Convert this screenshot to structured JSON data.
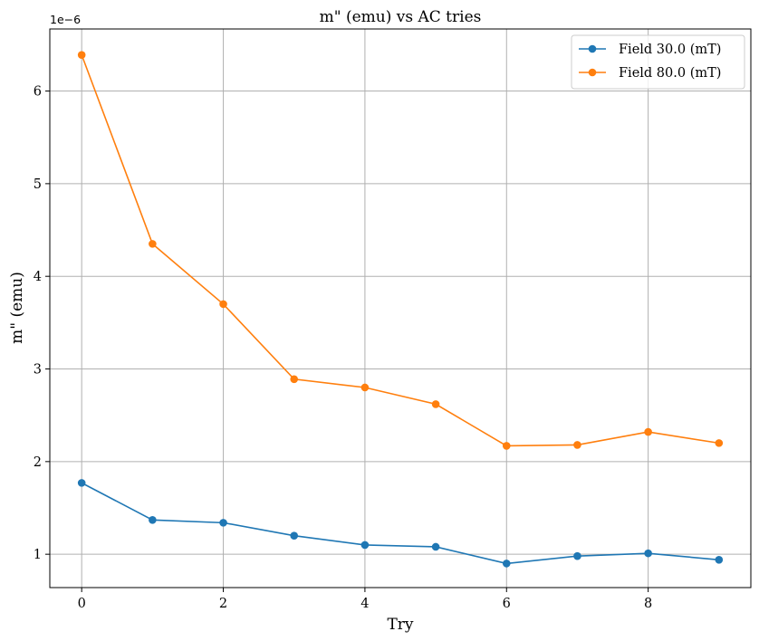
{
  "chart_data": {
    "type": "line",
    "title": "m\" (emu) vs  AC tries",
    "xlabel": "Try",
    "ylabel": "m\" (emu)",
    "y_offset_text": "1e−6",
    "x": [
      0,
      1,
      2,
      3,
      4,
      5,
      6,
      7,
      8,
      9
    ],
    "xlim": [
      -0.45,
      9.45
    ],
    "ylim": [
      0.64,
      6.67
    ],
    "y_scale_note": "values in units of 1e-6 emu",
    "xticks": [
      0,
      2,
      4,
      6,
      8
    ],
    "yticks": [
      1,
      2,
      3,
      4,
      5,
      6
    ],
    "grid": true,
    "legend_position": "top-right",
    "series": [
      {
        "name": "Field 30.0 (mT)",
        "color": "#1f77b4",
        "marker": "circle",
        "values": [
          1.77,
          1.37,
          1.34,
          1.2,
          1.1,
          1.08,
          0.9,
          0.98,
          1.01,
          0.94
        ]
      },
      {
        "name": "Field 80.0 (mT)",
        "color": "#ff7f0e",
        "marker": "circle",
        "values": [
          6.39,
          4.35,
          3.7,
          2.89,
          2.8,
          2.62,
          2.17,
          2.18,
          2.32,
          2.2
        ]
      }
    ]
  }
}
